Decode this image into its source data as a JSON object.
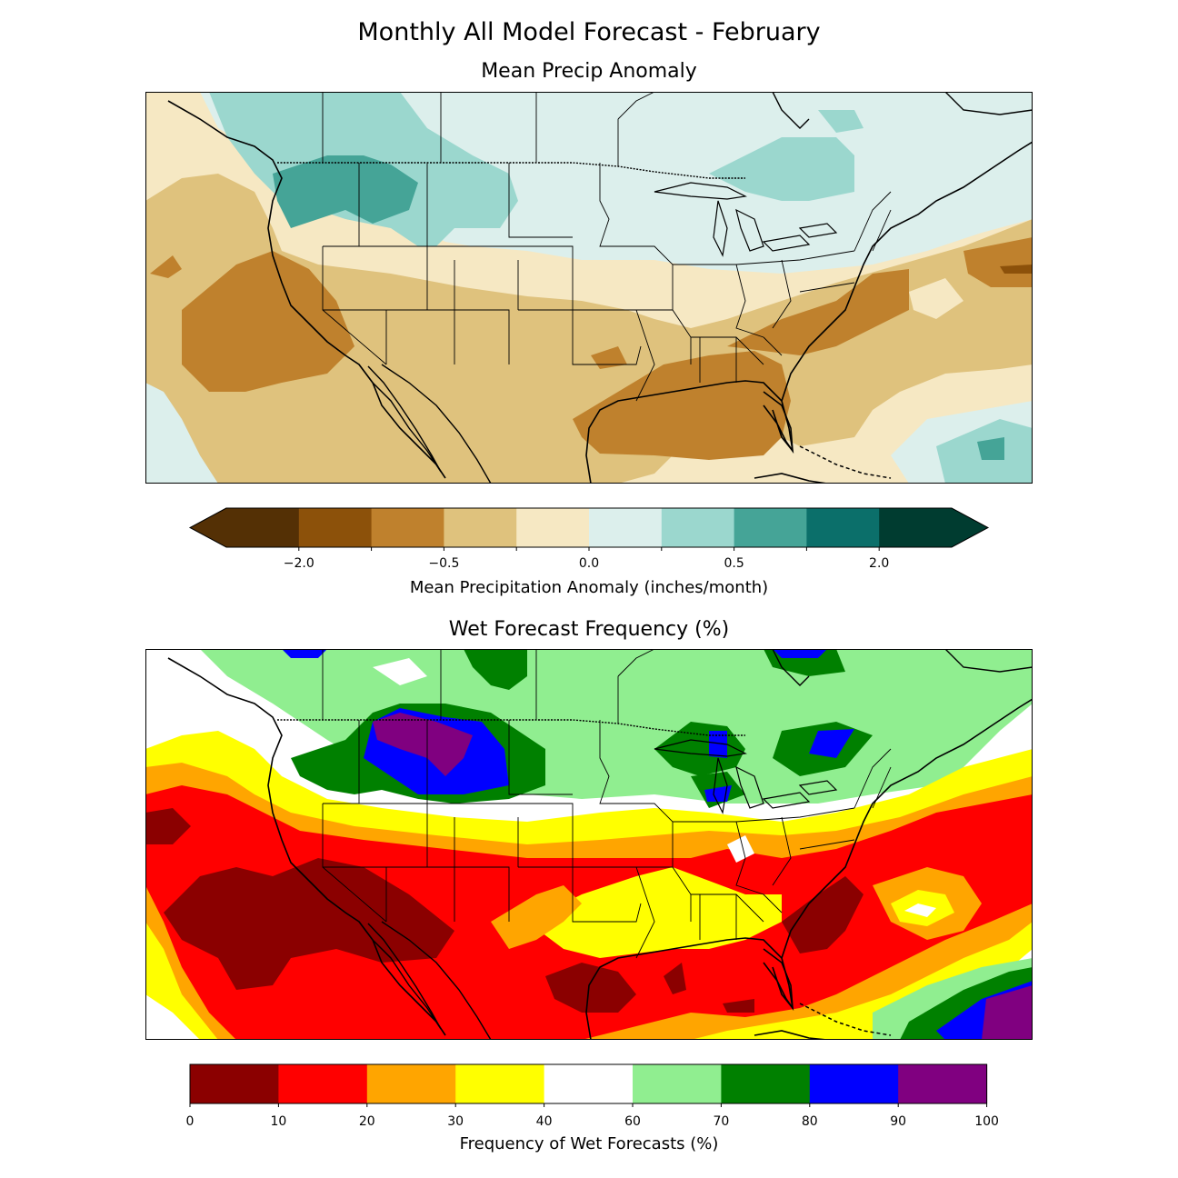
{
  "figure": {
    "title": "Monthly All Model Forecast - February"
  },
  "top_map": {
    "title": "Mean Precip Anomaly",
    "colorbar": {
      "label": "Mean Precipitation Anomaly (inches/month)",
      "extend": "both",
      "colors": [
        "#543005",
        "#8c510a",
        "#bf812d",
        "#dfc27d",
        "#f6e8c3",
        "#dcefec",
        "#9bd7ce",
        "#45a497",
        "#0b6f6a",
        "#003c30"
      ],
      "ticks": [
        {
          "label": "−2.0",
          "index": 1
        },
        {
          "label": "−0.5",
          "index": 3
        },
        {
          "label": "0.0",
          "index": 5
        },
        {
          "label": "0.5",
          "index": 7
        },
        {
          "label": "2.0",
          "index": 9
        }
      ]
    }
  },
  "bottom_map": {
    "title": "Wet Forecast Frequency (%)",
    "colorbar": {
      "label": "Frequency of Wet Forecasts (%)",
      "colors": [
        "#8b0000",
        "#ff0000",
        "#ffa500",
        "#ffff00",
        "#ffffff",
        "#90ee90",
        "#008000",
        "#0000ff",
        "#800080"
      ],
      "ticks": [
        "0",
        "10",
        "20",
        "30",
        "40",
        "60",
        "70",
        "80",
        "90",
        "100"
      ]
    }
  }
}
